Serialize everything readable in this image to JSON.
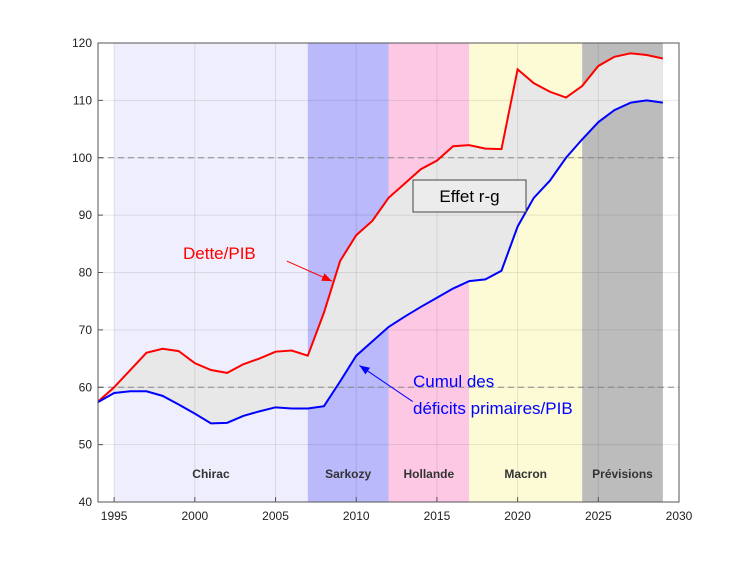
{
  "chart_data": {
    "type": "line",
    "title": "",
    "xlabel": "",
    "ylabel": "",
    "xlim": [
      1994,
      2030
    ],
    "ylim": [
      40,
      120
    ],
    "x_ticks": [
      1995,
      2000,
      2005,
      2010,
      2015,
      2020,
      2025,
      2030
    ],
    "y_ticks": [
      40,
      50,
      60,
      70,
      80,
      90,
      100,
      110,
      120
    ],
    "grid": true,
    "reference_lines": [
      {
        "y": 100,
        "style": "dashed"
      },
      {
        "y": 60,
        "style": "dashed"
      }
    ],
    "periods": [
      {
        "label": "Chirac",
        "start": 1995,
        "end": 2007,
        "color": "#eeeefc"
      },
      {
        "label": "Sarkozy",
        "start": 2007,
        "end": 2012,
        "color": "#b9b9fb"
      },
      {
        "label": "Hollande",
        "start": 2012,
        "end": 2017,
        "color": "#fcc8e4"
      },
      {
        "label": "Macron",
        "start": 2017,
        "end": 2024,
        "color": "#fcfbd6"
      },
      {
        "label": "Prévisions",
        "start": 2024,
        "end": 2029,
        "color": "#bcbcbc"
      }
    ],
    "series": [
      {
        "name": "Dette/PIB",
        "color": "#ff0000",
        "x": [
          1994,
          1995,
          1996,
          1997,
          1998,
          1999,
          2000,
          2001,
          2002,
          2003,
          2004,
          2005,
          2006,
          2007,
          2008,
          2009,
          2010,
          2011,
          2012,
          2013,
          2014,
          2015,
          2016,
          2017,
          2018,
          2019,
          2020,
          2021,
          2022,
          2023,
          2024,
          2025,
          2026,
          2027,
          2028,
          2029
        ],
        "values": [
          57.5,
          60.0,
          63.0,
          66.0,
          66.7,
          66.3,
          64.2,
          63.0,
          62.5,
          64.0,
          65.0,
          66.2,
          66.4,
          65.5,
          73.0,
          82.0,
          86.5,
          89.0,
          93.0,
          95.5,
          98.0,
          99.5,
          102.0,
          102.2,
          101.6,
          101.5,
          115.4,
          113.0,
          111.5,
          110.5,
          112.5,
          116.0,
          117.6,
          118.2,
          117.9,
          117.3
        ]
      },
      {
        "name": "Cumul des déficits primaires/PIB",
        "color": "#0000ff",
        "x": [
          1994,
          1995,
          1996,
          1997,
          1998,
          1999,
          2000,
          2001,
          2002,
          2003,
          2004,
          2005,
          2006,
          2007,
          2008,
          2009,
          2010,
          2011,
          2012,
          2013,
          2014,
          2015,
          2016,
          2017,
          2018,
          2019,
          2020,
          2021,
          2022,
          2023,
          2024,
          2025,
          2026,
          2027,
          2028,
          2029
        ],
        "values": [
          57.4,
          59.0,
          59.3,
          59.3,
          58.5,
          57.0,
          55.4,
          53.7,
          53.8,
          55.0,
          55.8,
          56.5,
          56.3,
          56.3,
          56.7,
          61.0,
          65.5,
          68.0,
          70.5,
          72.3,
          74.0,
          75.6,
          77.2,
          78.5,
          78.8,
          80.3,
          88.0,
          93.0,
          96.0,
          100.0,
          103.2,
          106.2,
          108.3,
          109.6,
          110.0,
          109.6
        ]
      }
    ],
    "fill_between_series": {
      "color": "#e8e8e8"
    },
    "annotations": {
      "dette": "Dette/PIB",
      "cumul_line1": "Cumul des",
      "cumul_line2": "déficits primaires/PIB",
      "effet": "Effet r-g"
    },
    "arrows": [
      {
        "series": "Dette/PIB",
        "from": [
          2005.7,
          82
        ],
        "to": [
          2008.5,
          78.5
        ],
        "color": "#ff0000"
      },
      {
        "series": "Cumul des déficits primaires/PIB",
        "from": [
          2013.5,
          57.5
        ],
        "to": [
          2010.2,
          63.8
        ],
        "color": "#0000ff"
      }
    ]
  }
}
